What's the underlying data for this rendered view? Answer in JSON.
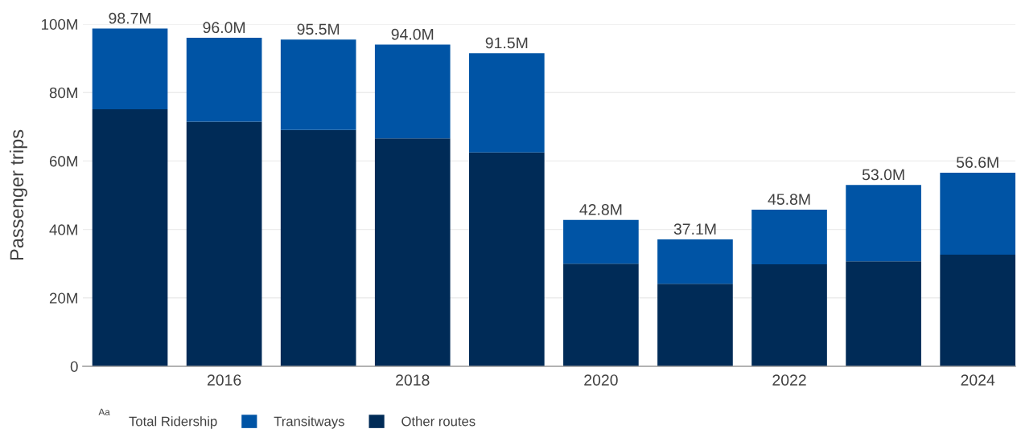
{
  "chart_data": {
    "type": "bar",
    "stacked": true,
    "ylabel": "Passenger trips",
    "x": [
      2015,
      2016,
      2017,
      2018,
      2019,
      2020,
      2021,
      2022,
      2023,
      2024
    ],
    "series": [
      {
        "name": "Other routes",
        "color": "#002b57",
        "values": [
          75.1,
          71.5,
          69.1,
          66.6,
          62.5,
          30.0,
          24.1,
          29.8,
          30.7,
          32.6
        ]
      },
      {
        "name": "Transitways",
        "color": "#0054a5",
        "values": [
          23.6,
          24.5,
          26.4,
          27.4,
          29.0,
          12.8,
          13.0,
          16.0,
          22.3,
          24.0
        ]
      }
    ],
    "totals": [
      "98.7M",
      "96.0M",
      "95.5M",
      "94.0M",
      "91.5M",
      "42.8M",
      "37.1M",
      "45.8M",
      "53.0M",
      "56.6M"
    ],
    "xlim": [
      2014.5,
      2024.4
    ],
    "xticks": [
      2016,
      2018,
      2020,
      2022,
      2024
    ],
    "ylim": [
      0,
      100
    ],
    "yticks": [
      0,
      {
        "value": 20,
        "label": "20M"
      },
      {
        "value": 40,
        "label": "40M"
      },
      {
        "value": 60,
        "label": "60M"
      },
      {
        "value": 80,
        "label": "80M"
      },
      {
        "value": 100,
        "label": "100M"
      }
    ],
    "grid": "y",
    "legend": "bottom left",
    "annotations": [
      "Aa",
      "Total Ridership"
    ]
  }
}
